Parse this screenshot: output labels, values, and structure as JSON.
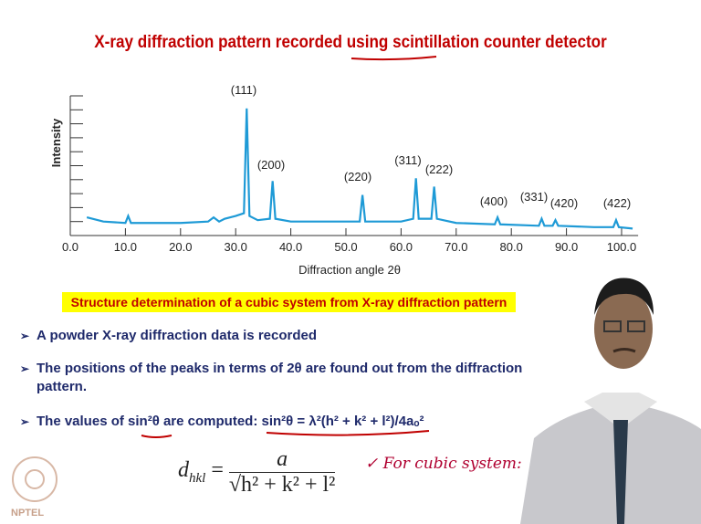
{
  "title": "X-ray diffraction pattern recorded using scintillation counter detector",
  "chart_data": {
    "type": "line",
    "xlabel": "Diffraction angle 2θ",
    "ylabel": "Intensity",
    "x": [
      3,
      6,
      10,
      10.5,
      11,
      15,
      20,
      25,
      26,
      27,
      28,
      30,
      31.5,
      32,
      32.5,
      34,
      36.2,
      36.7,
      37.2,
      40,
      45,
      52.5,
      53,
      53.5,
      57,
      60,
      62.2,
      62.7,
      63.2,
      65.5,
      66,
      66.5,
      70,
      77,
      77.5,
      78,
      85,
      85.5,
      86,
      87.5,
      88,
      88.5,
      95,
      98.5,
      99,
      99.5,
      102
    ],
    "values": [
      13,
      10,
      9,
      14,
      9,
      9,
      9,
      10,
      13,
      10,
      12,
      14,
      16,
      91,
      14,
      11,
      12,
      39,
      12,
      10,
      10,
      10,
      29,
      10,
      10,
      10,
      12,
      41,
      12,
      12,
      35,
      12,
      9,
      8,
      13,
      8,
      7,
      12,
      7,
      7,
      11,
      7,
      6,
      6,
      11,
      6,
      5
    ],
    "color": "#1e9ad6",
    "xlim": [
      0,
      103
    ],
    "ylim": [
      0,
      100
    ],
    "xticks": [
      {
        "value": 0,
        "label": "0.0"
      },
      {
        "value": 10,
        "label": "10.0"
      },
      {
        "value": 20,
        "label": "20.0"
      },
      {
        "value": 30,
        "label": "30.0"
      },
      {
        "value": 40,
        "label": "40.0"
      },
      {
        "value": 50,
        "label": "50.0"
      },
      {
        "value": 60,
        "label": "60.0"
      },
      {
        "value": 70,
        "label": "70.0"
      },
      {
        "value": 80,
        "label": "80.0"
      },
      {
        "value": 90,
        "label": "90.0"
      },
      {
        "value": 100,
        "label": "100.0"
      }
    ],
    "yticks": [
      0,
      10,
      20,
      30,
      40,
      50,
      60,
      70,
      80,
      90,
      100
    ],
    "annotations": [
      "(111)",
      "(200)",
      "(220)",
      "(311)",
      "(222)",
      "(400)",
      "(331)",
      "(420)",
      "(422)"
    ]
  },
  "highlight": "Structure determination of a cubic system from X-ray diffraction pattern",
  "bullets": [
    "A powder X-ray diffraction data is recorded",
    "The positions of the peaks in terms of 2θ are found out from the  diffraction pattern.",
    "The values of sin²θ are computed: sin²θ = λ²(h² + k² + l²)/4aₒ²"
  ],
  "formula": {
    "lhs": "d",
    "sub": "hkl",
    "num": "a",
    "den": "h² + k² + l²"
  },
  "note": "✓  For cubic system:",
  "logo": "NPTEL"
}
